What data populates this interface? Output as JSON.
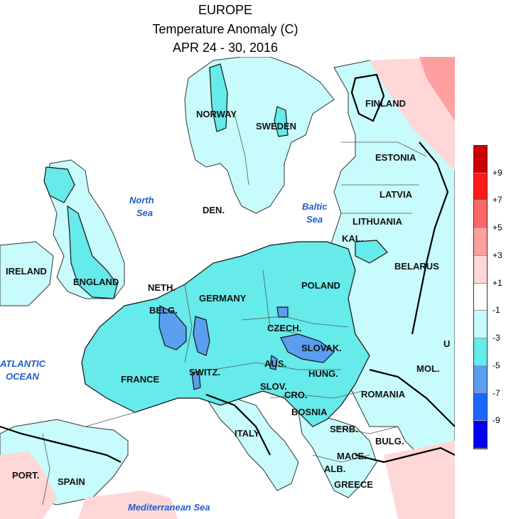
{
  "header": {
    "line1": "EUROPE",
    "line2": "Temperature Anomaly (C)",
    "line3": "APR 24 - 30, 2016"
  },
  "countries": {
    "finland": "FINLAND",
    "norway": "NORWAY",
    "sweden": "SWEDEN",
    "estonia": "ESTONIA",
    "latvia": "LATVIA",
    "lithuania": "LITHUANIA",
    "kal": "KAL.",
    "belarus": "BELARUS",
    "ireland": "IRELAND",
    "england": "ENGLAND",
    "den": "DEN.",
    "neth": "NETH.",
    "belg": "BELG.",
    "germany": "GERMANY",
    "poland": "POLAND",
    "czech": "CZECH.",
    "slovak": "SLOVAK.",
    "aus": "AUS.",
    "hung": "HUNG.",
    "switz": "SWITZ.",
    "slov": "SLOV.",
    "cro": "CRO.",
    "bosnia": "BOSNIA",
    "france": "FRANCE",
    "romania": "ROMANIA",
    "mol": "MOL.",
    "serb": "SERB.",
    "bulg": "BULG.",
    "italy": "ITALY",
    "mace": "MACE.",
    "alb": "ALB.",
    "greece": "GREECE",
    "port": "PORT.",
    "spain": "SPAIN",
    "ukr_partial": "U"
  },
  "seas": {
    "north_1": "North",
    "north_2": "Sea",
    "baltic_1": "Baltic",
    "baltic_2": "Sea",
    "atlantic_1": "ATLANTIC",
    "atlantic_2": "OCEAN",
    "med": "Mediterranean Sea"
  },
  "legend": {
    "bins": [
      {
        "label": "+9",
        "color": "#cc0000"
      },
      {
        "label": "+7",
        "color": "#ff1a1a"
      },
      {
        "label": "+5",
        "color": "#ff6666"
      },
      {
        "label": "+3",
        "color": "#ffa0a0"
      },
      {
        "label": "+1",
        "color": "#ffd7d7"
      },
      {
        "label": "-1",
        "color": "#ffffff"
      },
      {
        "label": "-3",
        "color": "#c8fbfb"
      },
      {
        "label": "-5",
        "color": "#66eaea"
      },
      {
        "label": "-7",
        "color": "#5b9ef0"
      },
      {
        "label": "-9",
        "color": "#1a66ff"
      },
      {
        "label": "",
        "color": "#0000ee"
      }
    ]
  }
}
